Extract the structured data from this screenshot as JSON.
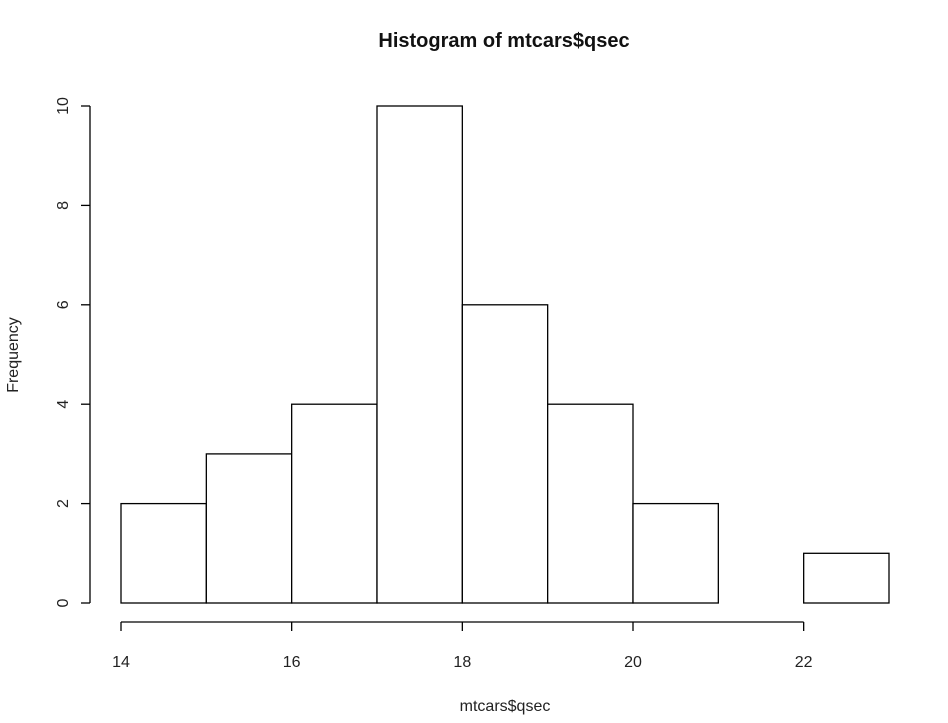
{
  "chart_data": {
    "type": "bar",
    "subtype": "histogram",
    "title": "Histogram of mtcars$qsec",
    "xlabel": "mtcars$qsec",
    "ylabel": "Frequency",
    "bins": [
      {
        "start": 14,
        "end": 15,
        "count": 2
      },
      {
        "start": 15,
        "end": 16,
        "count": 3
      },
      {
        "start": 16,
        "end": 17,
        "count": 4
      },
      {
        "start": 17,
        "end": 18,
        "count": 10
      },
      {
        "start": 18,
        "end": 19,
        "count": 6
      },
      {
        "start": 19,
        "end": 20,
        "count": 4
      },
      {
        "start": 20,
        "end": 21,
        "count": 2
      },
      {
        "start": 21,
        "end": 22,
        "count": 0
      },
      {
        "start": 22,
        "end": 23,
        "count": 1
      }
    ],
    "xlim": [
      14,
      23
    ],
    "ylim": [
      0,
      10
    ],
    "x_ticks": [
      {
        "value": 14,
        "label": "14"
      },
      {
        "value": 16,
        "label": "16"
      },
      {
        "value": 18,
        "label": "18"
      },
      {
        "value": 20,
        "label": "20"
      },
      {
        "value": 22,
        "label": "22"
      }
    ],
    "y_ticks": [
      {
        "value": 0,
        "label": "0"
      },
      {
        "value": 2,
        "label": "2"
      },
      {
        "value": 4,
        "label": "4"
      },
      {
        "value": 6,
        "label": "6"
      },
      {
        "value": 8,
        "label": "8"
      },
      {
        "value": 10,
        "label": "10"
      }
    ],
    "grid": false,
    "legend": "none",
    "bar_fill": "#ffffff",
    "bar_stroke": "#000000"
  }
}
